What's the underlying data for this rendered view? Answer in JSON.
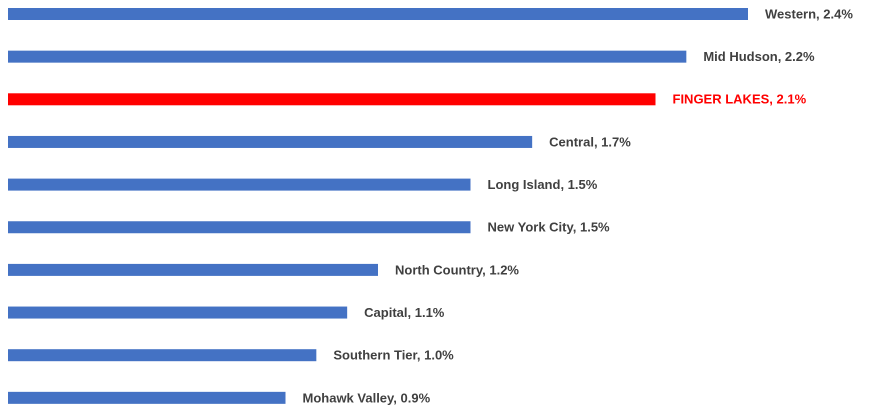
{
  "chart_data": {
    "type": "bar",
    "orientation": "horizontal",
    "values": [
      2.4,
      2.2,
      2.1,
      1.7,
      1.5,
      1.5,
      1.2,
      1.1,
      1.0,
      0.9
    ],
    "value_labels": [
      "Western, 2.4%",
      "Mid Hudson, 2.2%",
      "FINGER LAKES, 2.1%",
      "Central, 1.7%",
      "Long Island, 1.5%",
      "New York City, 1.5%",
      "North Country, 1.2%",
      "Capital, 1.1%",
      "Southern Tier, 1.0%",
      "Mohawk Valley, 0.9%"
    ],
    "colors": [
      "#4472c4",
      "#4472c4",
      "#ff0000",
      "#4472c4",
      "#4472c4",
      "#4472c4",
      "#4472c4",
      "#4472c4",
      "#4472c4",
      "#4472c4"
    ],
    "label_colors": [
      "#404040",
      "#404040",
      "#ff0000",
      "#404040",
      "#404040",
      "#404040",
      "#404040",
      "#404040",
      "#404040",
      "#404040"
    ]
  }
}
